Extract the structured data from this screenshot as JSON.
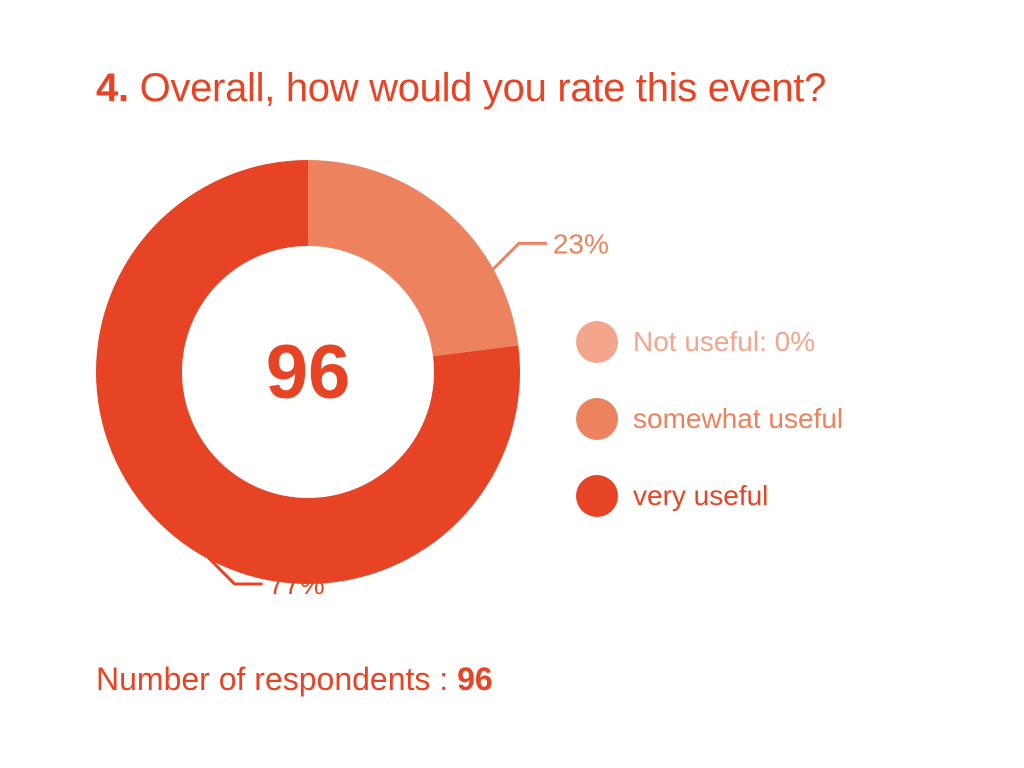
{
  "title": {
    "number": "4.",
    "text": "Overall, how would you rate this event?"
  },
  "colors": {
    "accent": "#e64424",
    "not_useful": "#f4a68c",
    "somewhat_useful": "#ec825e",
    "very_useful": "#e64424"
  },
  "chart_data": {
    "type": "pie",
    "variant": "donut",
    "center_label": "96",
    "slices": [
      {
        "label": "Not useful",
        "value": 0,
        "color": "#f4a68c",
        "data_label": ""
      },
      {
        "label": "somewhat useful",
        "value": 23,
        "color": "#ec825e",
        "data_label": "23%"
      },
      {
        "label": "very useful",
        "value": 77,
        "color": "#e64424",
        "data_label": "77%"
      }
    ],
    "legend": {
      "placement": "right",
      "entries": [
        "Not useful: 0%",
        "somewhat useful",
        "very useful"
      ]
    }
  },
  "footer": {
    "label": "Number of respondents :",
    "value": "96"
  }
}
